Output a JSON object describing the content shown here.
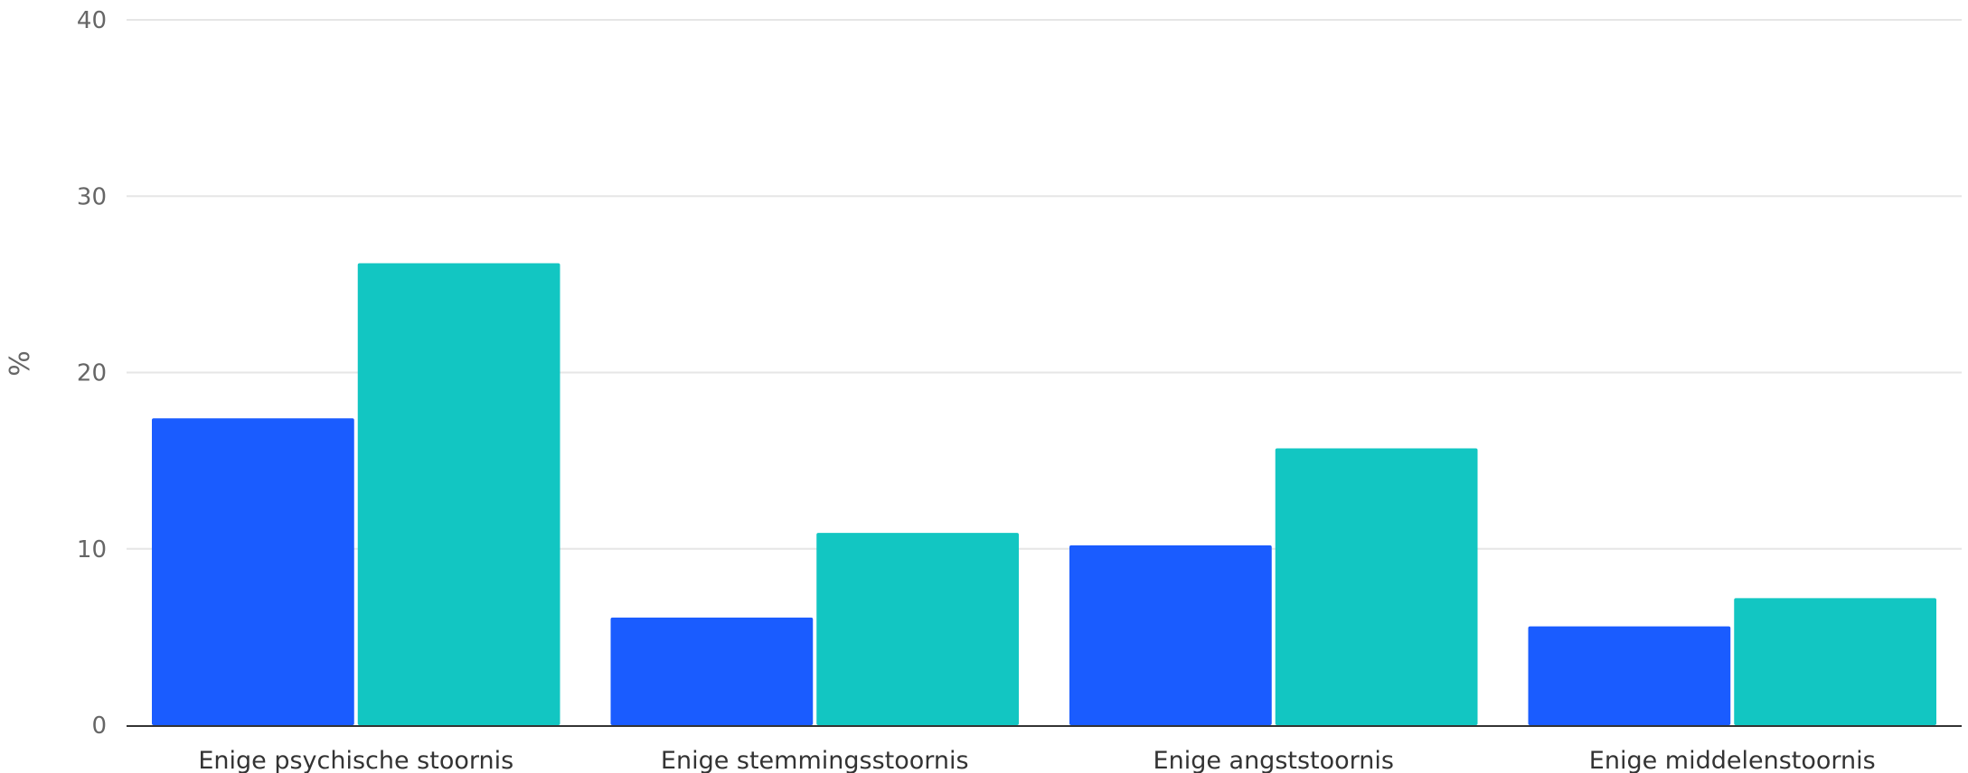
{
  "chart_data": {
    "type": "bar",
    "ylabel": "%",
    "ylim": [
      0,
      40
    ],
    "yticks": [
      0,
      10,
      20,
      30,
      40
    ],
    "grid": true,
    "categories": [
      "Enige psychische stoornis",
      "Enige stemmingsstoornis",
      "Enige angststoornis",
      "Enige middelenstoornis"
    ],
    "series": [
      {
        "color": "#1a5cff",
        "values": [
          17.4,
          6.1,
          10.2,
          5.6
        ]
      },
      {
        "color": "#12c6c2",
        "values": [
          26.2,
          10.9,
          15.7,
          7.2
        ]
      }
    ]
  }
}
